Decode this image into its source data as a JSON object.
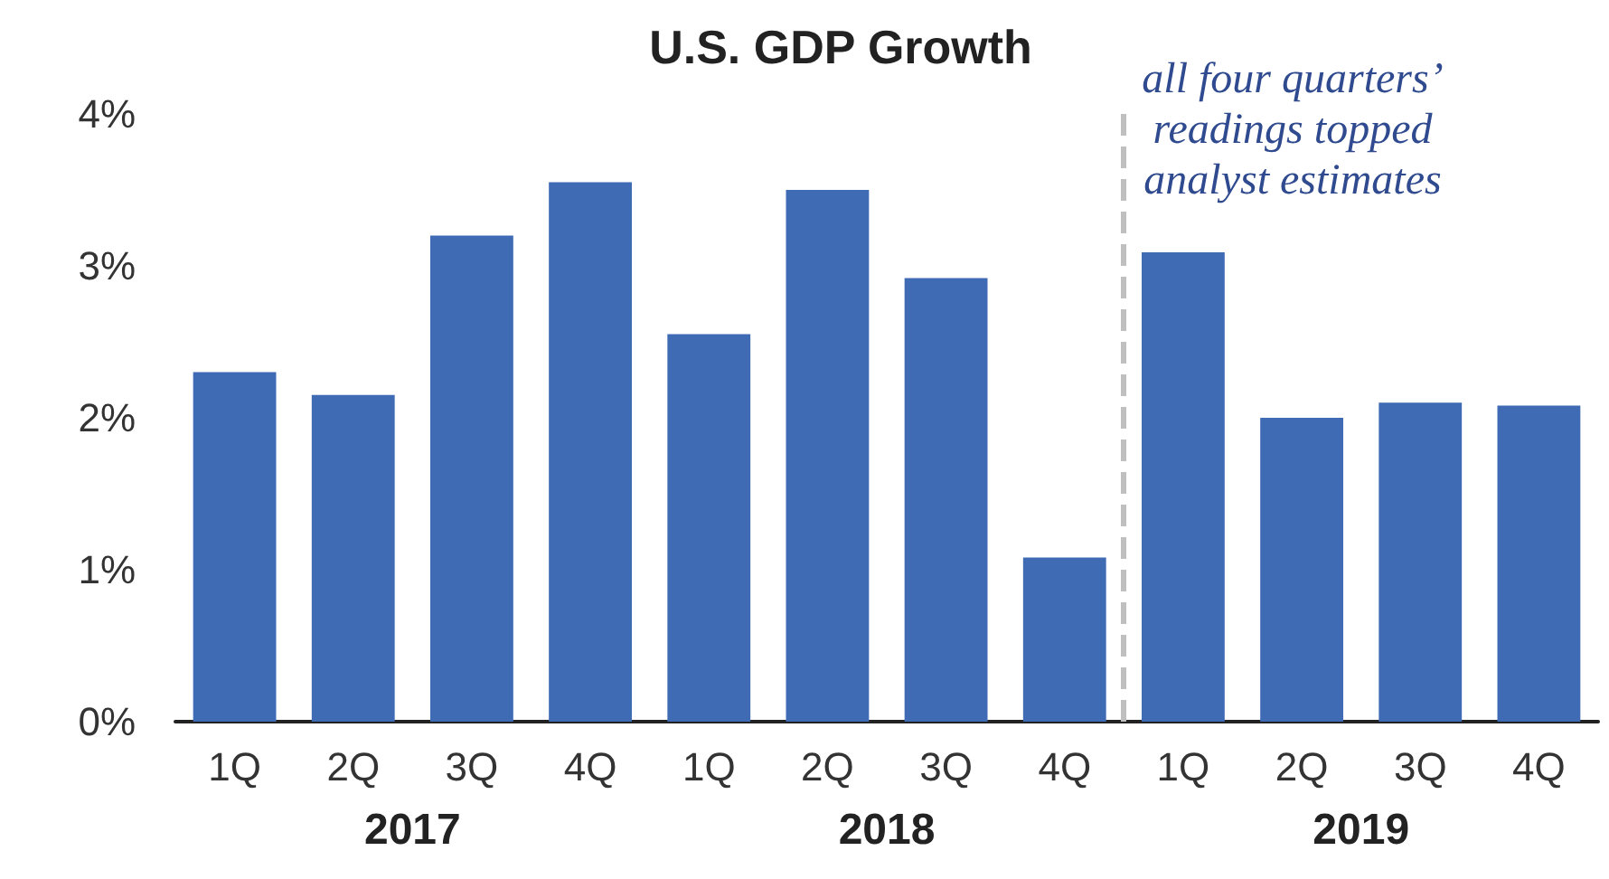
{
  "chart_data": {
    "type": "bar",
    "title": "U.S. GDP Growth",
    "categories": [
      "1Q",
      "2Q",
      "3Q",
      "4Q",
      "1Q",
      "2Q",
      "3Q",
      "4Q",
      "1Q",
      "2Q",
      "3Q",
      "4Q"
    ],
    "values": [
      2.3,
      2.15,
      3.2,
      3.55,
      2.55,
      3.5,
      2.92,
      1.08,
      3.09,
      2.0,
      2.1,
      2.08
    ],
    "color": "#3f6bb5",
    "ylim": [
      0,
      4
    ],
    "yticks": [
      {
        "value": 0,
        "label": "0%"
      },
      {
        "value": 1,
        "label": "1%"
      },
      {
        "value": 2,
        "label": "2%"
      },
      {
        "value": 3,
        "label": "3%"
      },
      {
        "value": 4,
        "label": "4%"
      }
    ],
    "annotations": [
      "all four quarters’\nreadings topped\nanalyst estimates",
      "2017",
      "2018",
      "2019"
    ],
    "grid": false
  }
}
